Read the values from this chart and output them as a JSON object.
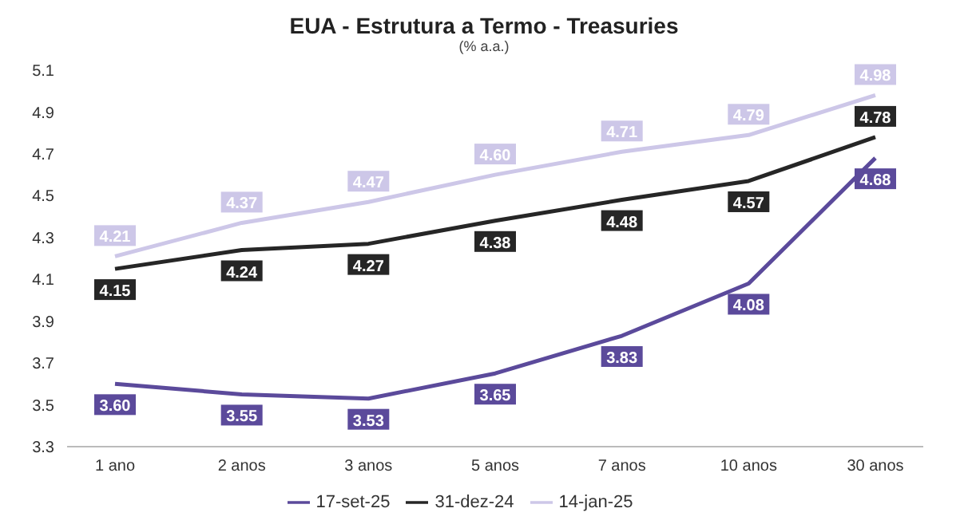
{
  "chart_data": {
    "type": "line",
    "title": "EUA - Estrutura a Termo - Treasuries",
    "subtitle": "(% a.a.)",
    "categories": [
      "1 ano",
      "2 anos",
      "3 anos",
      "5 anos",
      "7 anos",
      "10 anos",
      "30 anos"
    ],
    "series": [
      {
        "name": "17-set-25",
        "color": "#5b4a9b",
        "values": [
          3.6,
          3.55,
          3.53,
          3.65,
          3.83,
          4.08,
          4.68
        ],
        "value_labels": [
          "3.60",
          "3.55",
          "3.53",
          "3.65",
          "3.83",
          "4.08",
          "4.68"
        ]
      },
      {
        "name": "31-dez-24",
        "color": "#262626",
        "values": [
          4.15,
          4.24,
          4.27,
          4.38,
          4.48,
          4.57,
          4.78
        ],
        "value_labels": [
          "4.15",
          "4.24",
          "4.27",
          "4.38",
          "4.48",
          "4.57",
          "4.78"
        ]
      },
      {
        "name": "14-jan-25",
        "color": "#cdc7e8",
        "values": [
          4.21,
          4.37,
          4.47,
          4.6,
          4.71,
          4.79,
          4.98
        ],
        "value_labels": [
          "4.21",
          "4.37",
          "4.47",
          "4.60",
          "4.71",
          "4.79",
          "4.98"
        ]
      }
    ],
    "ylim": [
      3.3,
      5.1
    ],
    "yticks": [
      3.3,
      3.5,
      3.7,
      3.9,
      4.1,
      4.3,
      4.5,
      4.7,
      4.9,
      5.1
    ],
    "grid": false,
    "legend": "bottom",
    "marker": "none",
    "line_style": "solid"
  }
}
